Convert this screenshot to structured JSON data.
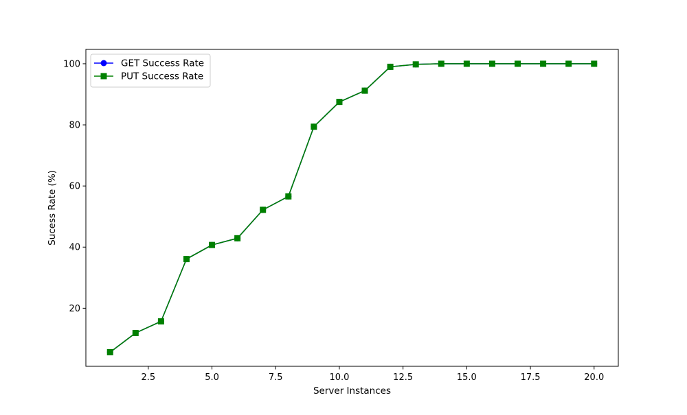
{
  "chart_data": {
    "type": "line",
    "title": "",
    "xlabel": "Server Instances",
    "ylabel": "Sucess Rate (%)",
    "xlim": [
      0.05,
      20.95
    ],
    "ylim": [
      1.0,
      104.7
    ],
    "xticks": [
      2.5,
      5.0,
      7.5,
      10.0,
      12.5,
      15.0,
      17.5,
      20.0
    ],
    "xtick_labels": [
      "2.5",
      "5.0",
      "7.5",
      "10.0",
      "12.5",
      "15.0",
      "17.5",
      "20.0"
    ],
    "yticks": [
      20,
      40,
      60,
      80,
      100
    ],
    "ytick_labels": [
      "20",
      "40",
      "60",
      "80",
      "100"
    ],
    "grid": false,
    "legend_position": "top-left",
    "x": [
      1,
      2,
      3,
      4,
      5,
      6,
      7,
      8,
      9,
      10,
      11,
      12,
      13,
      14,
      15,
      16,
      17,
      18,
      19,
      20
    ],
    "series": [
      {
        "name": "GET Success Rate",
        "color": "#0000ff",
        "marker": "circle",
        "values": [
          5.6,
          11.9,
          15.7,
          36.1,
          40.7,
          42.9,
          52.2,
          56.6,
          79.4,
          87.5,
          91.2,
          99.0,
          99.8,
          100.0,
          100.0,
          100.0,
          100.0,
          100.0,
          100.0,
          100.0
        ]
      },
      {
        "name": "PUT Success Rate",
        "color": "#008000",
        "marker": "square",
        "values": [
          5.6,
          11.9,
          15.7,
          36.1,
          40.7,
          42.9,
          52.2,
          56.6,
          79.4,
          87.5,
          91.2,
          99.0,
          99.8,
          100.0,
          100.0,
          100.0,
          100.0,
          100.0,
          100.0,
          100.0
        ]
      }
    ]
  }
}
